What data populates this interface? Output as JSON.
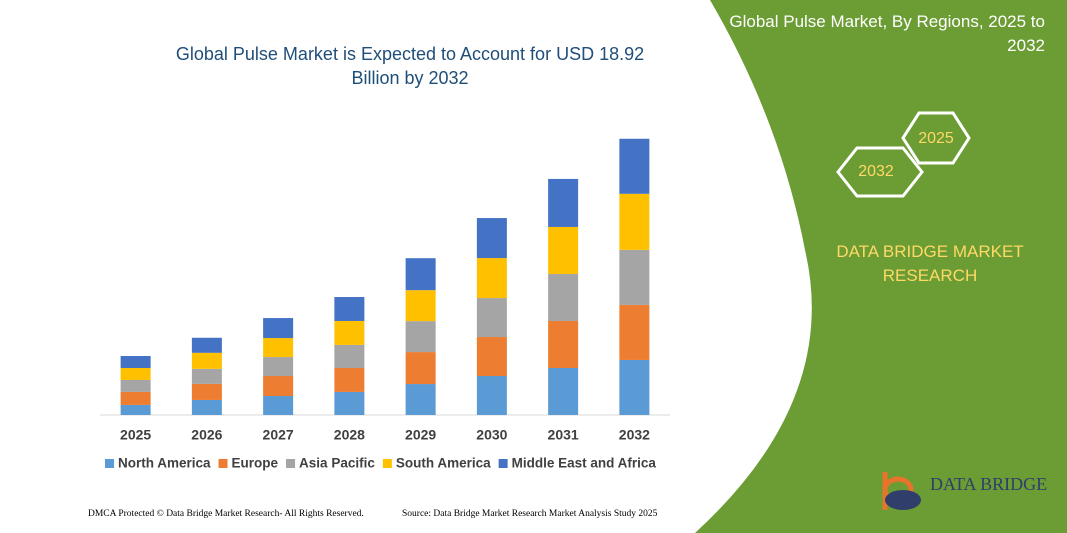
{
  "chart_data": {
    "type": "bar",
    "stacked": true,
    "title": "Global Pulse Market is Expected to Account for USD 18.92 Billion by 2032",
    "categories": [
      "2025",
      "2026",
      "2027",
      "2028",
      "2029",
      "2030",
      "2031",
      "2032"
    ],
    "series": [
      {
        "name": "North America",
        "color": "#5b9bd5",
        "values": [
          0.69,
          1.03,
          1.3,
          1.58,
          2.12,
          2.67,
          3.22,
          3.77
        ]
      },
      {
        "name": "Europe",
        "color": "#ed7d31",
        "values": [
          0.89,
          1.1,
          1.37,
          1.64,
          2.19,
          2.67,
          3.22,
          3.77
        ]
      },
      {
        "name": "Asia Pacific",
        "color": "#a5a5a5",
        "values": [
          0.82,
          1.03,
          1.3,
          1.58,
          2.12,
          2.67,
          3.22,
          3.77
        ]
      },
      {
        "name": "South America",
        "color": "#ffc000",
        "values": [
          0.82,
          1.1,
          1.3,
          1.64,
          2.12,
          2.74,
          3.22,
          3.84
        ]
      },
      {
        "name": "Middle East and Africa",
        "color": "#4472c4",
        "values": [
          0.82,
          1.03,
          1.37,
          1.64,
          2.19,
          2.74,
          3.29,
          3.77
        ]
      }
    ],
    "ylim": [
      0,
      20
    ],
    "legend": "bottom"
  },
  "panel": {
    "title": "Global Pulse Market, By Regions, 2025 to 2032",
    "hex_right": "2025",
    "hex_left": "2032",
    "brand": "DATA BRIDGE MARKET RESEARCH"
  },
  "footer": {
    "left": "DMCA Protected © Data Bridge Market Research-  All Rights Reserved.",
    "right": "Source: Data Bridge Market Research  Market Analysis Study 2025",
    "logo": "DATA BRIDGE"
  }
}
